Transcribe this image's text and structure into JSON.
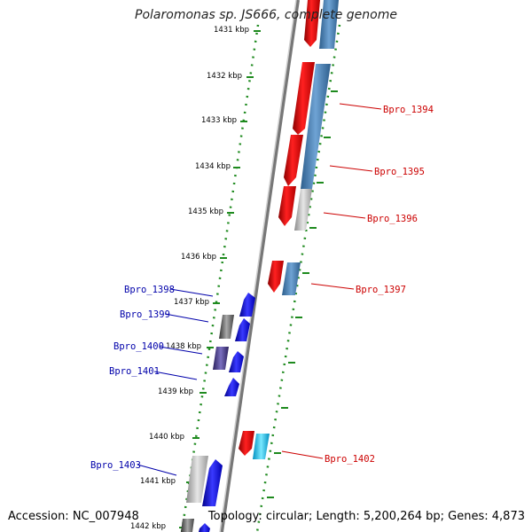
{
  "title": "Polaromonas sp. JS666, complete genome",
  "accession": "Accession: NC_007948",
  "topology": "Topology: circular; Length: 5,200,264 bp; Genes: 4,873",
  "colors": {
    "fwd_gene": "#0000ee",
    "rev_gene": "#ee0000",
    "fwd_label": "#0000aa",
    "rev_label": "#cc0000",
    "ruler": "#1e8a1e",
    "backbone": "#808080"
  },
  "ticks": [
    "1431 kbp",
    "1432 kbp",
    "1433 kbp",
    "1434 kbp",
    "1435 kbp",
    "1436 kbp",
    "1437 kbp",
    "1438 kbp",
    "1439 kbp",
    "1440 kbp",
    "1441 kbp",
    "1442 kbp"
  ],
  "labels_right": [
    "Bpro_1394",
    "Bpro_1395",
    "Bpro_1396",
    "Bpro_1397",
    "Bpro_1402"
  ],
  "labels_left": [
    "Bpro_1398",
    "Bpro_1399",
    "Bpro_1400",
    "Bpro_1401",
    "Bpro_1403"
  ]
}
